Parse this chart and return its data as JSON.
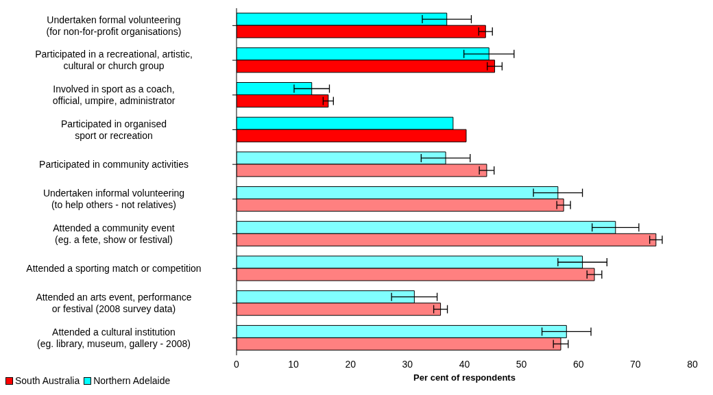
{
  "chart_data": {
    "type": "bar",
    "orientation": "horizontal",
    "xlabel": "Per cent of respondents",
    "categories": [
      "Undertaken formal volunteering\n(for non-for-profit organisations)",
      "Participated in a recreational, artistic,\ncultural or church group",
      "Involved in sport as a coach,\nofficial, umpire, administrator",
      "Participated in organised\nsport or recreation",
      "Participated in community activities",
      "Undertaken informal volunteering\n(to help others - not relatives)",
      "Attended a community event\n(eg. a fete, show or festival)",
      "Attended a sporting match or competition",
      "Attended an arts event, performance\nor festival (2008 survey data)",
      "Attended a cultural institution\n(eg. library, museum, gallery - 2008)"
    ],
    "series": [
      {
        "name": "South Australia",
        "color": "#ff0000",
        "colors": [
          "#ff0000",
          "#ff0000",
          "#ff0000",
          "#ff0000",
          "#ff8080",
          "#ff8080",
          "#ff8080",
          "#ff8080",
          "#ff8080",
          "#ff8080"
        ],
        "values": [
          43.7,
          45.3,
          16.1,
          40.3,
          43.9,
          57.4,
          73.6,
          62.8,
          35.8,
          56.9
        ],
        "errors": [
          1.2,
          1.3,
          0.9,
          null,
          1.3,
          1.2,
          1.1,
          1.3,
          1.2,
          1.3
        ]
      },
      {
        "name": "Northern Adelaide",
        "color": "#00ffff",
        "colors": [
          "#00ffff",
          "#00ffff",
          "#00ffff",
          "#00ffff",
          "#80ffff",
          "#80ffff",
          "#80ffff",
          "#80ffff",
          "#80ffff",
          "#80ffff"
        ],
        "values": [
          36.9,
          44.3,
          13.2,
          38.0,
          36.7,
          56.4,
          66.5,
          60.7,
          31.2,
          57.9
        ],
        "errors": [
          4.3,
          4.4,
          3.1,
          null,
          4.3,
          4.3,
          4.1,
          4.3,
          4.0,
          4.3
        ]
      }
    ],
    "xlim": [
      0,
      80
    ],
    "xticks": [
      0,
      10,
      20,
      30,
      40,
      50,
      60,
      70,
      80
    ],
    "grid": false,
    "legend": "bottom left"
  }
}
